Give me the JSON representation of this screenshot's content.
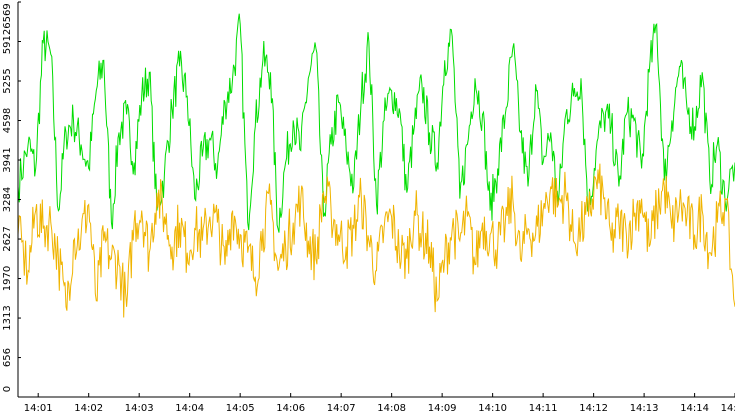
{
  "chart_data": {
    "type": "line",
    "title": "",
    "xlabel": "",
    "ylabel": "",
    "ylim": [
      0,
      6569
    ],
    "xlim_minutes": [
      0.6,
      14.8
    ],
    "y_ticks": [
      {
        "value": 0,
        "label": "0"
      },
      {
        "value": 656,
        "label": "656"
      },
      {
        "value": 1313,
        "label": "1313"
      },
      {
        "value": 1970,
        "label": "1970"
      },
      {
        "value": 2627,
        "label": "2627"
      },
      {
        "value": 3284,
        "label": "3284"
      },
      {
        "value": 3941,
        "label": "3941"
      },
      {
        "value": 4598,
        "label": "4598"
      },
      {
        "value": 5255,
        "label": "5255"
      },
      {
        "value": 5912,
        "label": "5912"
      },
      {
        "value": 6569,
        "label": "6569"
      }
    ],
    "x_ticks": [
      {
        "minute": 1,
        "label": "14:01"
      },
      {
        "minute": 2,
        "label": "14:02"
      },
      {
        "minute": 3,
        "label": "14:03"
      },
      {
        "minute": 4,
        "label": "14:04"
      },
      {
        "minute": 5,
        "label": "14:05"
      },
      {
        "minute": 6,
        "label": "14:06"
      },
      {
        "minute": 7,
        "label": "14:07"
      },
      {
        "minute": 8,
        "label": "14:08"
      },
      {
        "minute": 9,
        "label": "14:09"
      },
      {
        "minute": 10,
        "label": "14:10"
      },
      {
        "minute": 11,
        "label": "14:11"
      },
      {
        "minute": 12,
        "label": "14:12"
      },
      {
        "minute": 13,
        "label": "14:13"
      },
      {
        "minute": 14,
        "label": "14:14"
      },
      {
        "minute": 14.8,
        "label": "14:14"
      }
    ],
    "grid": false,
    "legend": "none",
    "series": [
      {
        "color": "#00dd00",
        "x_minutes": [
          0.6,
          0.8,
          0.95,
          1.1,
          1.25,
          1.4,
          1.55,
          1.7,
          1.85,
          2.0,
          2.15,
          2.3,
          2.45,
          2.6,
          2.75,
          2.9,
          3.05,
          3.2,
          3.35,
          3.5,
          3.65,
          3.8,
          3.95,
          4.1,
          4.25,
          4.4,
          4.55,
          4.7,
          4.85,
          5.0,
          5.15,
          5.3,
          5.45,
          5.6,
          5.75,
          5.9,
          6.05,
          6.2,
          6.35,
          6.5,
          6.65,
          6.8,
          6.95,
          7.1,
          7.25,
          7.4,
          7.55,
          7.7,
          7.85,
          8.0,
          8.15,
          8.3,
          8.45,
          8.6,
          8.75,
          8.9,
          9.05,
          9.2,
          9.35,
          9.5,
          9.65,
          9.8,
          9.95,
          10.1,
          10.25,
          10.4,
          10.55,
          10.7,
          10.85,
          11.0,
          11.15,
          11.3,
          11.45,
          11.6,
          11.75,
          11.9,
          12.05,
          12.2,
          12.35,
          12.5,
          12.65,
          12.8,
          12.95,
          13.1,
          13.25,
          13.4,
          13.55,
          13.7,
          13.85,
          14.0,
          14.15,
          14.3,
          14.45,
          14.6,
          14.8
        ],
        "values": [
          3500,
          4200,
          3800,
          5900,
          5700,
          3100,
          4400,
          4600,
          4200,
          3800,
          5100,
          5600,
          2900,
          4400,
          4700,
          3900,
          5000,
          5400,
          3100,
          3700,
          4800,
          5500,
          5000,
          3300,
          4000,
          4300,
          3800,
          4900,
          5300,
          6200,
          2900,
          4500,
          5600,
          5400,
          2800,
          3900,
          4600,
          4100,
          5300,
          5800,
          3000,
          4200,
          4900,
          4100,
          3500,
          5000,
          5900,
          3200,
          4600,
          5100,
          4800,
          3400,
          4500,
          5200,
          4400,
          3900,
          5600,
          6000,
          3300,
          4200,
          5300,
          4700,
          3100,
          3800,
          4700,
          5800,
          4400,
          3500,
          5200,
          3900,
          4400,
          3200,
          4700,
          5000,
          5300,
          3100,
          4100,
          4700,
          4500,
          3500,
          4700,
          4600,
          3800,
          5400,
          6200,
          3600,
          4600,
          5500,
          4800,
          4500,
          5400,
          3600,
          4200,
          3300,
          3900
        ]
      },
      {
        "color": "#f0b400",
        "x_minutes": [
          0.6,
          0.8,
          0.95,
          1.1,
          1.25,
          1.4,
          1.55,
          1.7,
          1.85,
          2.0,
          2.15,
          2.3,
          2.45,
          2.6,
          2.75,
          2.9,
          3.05,
          3.2,
          3.35,
          3.5,
          3.65,
          3.8,
          3.95,
          4.1,
          4.25,
          4.4,
          4.55,
          4.7,
          4.85,
          5.0,
          5.15,
          5.3,
          5.45,
          5.6,
          5.75,
          5.9,
          6.05,
          6.2,
          6.35,
          6.5,
          6.65,
          6.8,
          6.95,
          7.1,
          7.25,
          7.4,
          7.55,
          7.7,
          7.85,
          8.0,
          8.15,
          8.3,
          8.45,
          8.6,
          8.75,
          8.9,
          9.05,
          9.2,
          9.35,
          9.5,
          9.65,
          9.8,
          9.95,
          10.1,
          10.25,
          10.4,
          10.55,
          10.7,
          10.85,
          11.0,
          11.15,
          11.3,
          11.45,
          11.6,
          11.75,
          11.9,
          12.05,
          12.2,
          12.35,
          12.5,
          12.65,
          12.8,
          12.95,
          13.1,
          13.25,
          13.4,
          13.55,
          13.7,
          13.85,
          14.0,
          14.15,
          14.3,
          14.45,
          14.6,
          14.8
        ],
        "values": [
          2700,
          2100,
          3100,
          2800,
          2900,
          2300,
          1500,
          2600,
          2700,
          3200,
          1600,
          2600,
          2300,
          2200,
          1500,
          2900,
          3100,
          2400,
          3400,
          3000,
          2500,
          2900,
          2400,
          2800,
          2600,
          3000,
          2900,
          2200,
          3100,
          2700,
          2400,
          2000,
          2800,
          3200,
          2100,
          2500,
          2900,
          3300,
          2600,
          2300,
          3400,
          3100,
          2700,
          2500,
          2800,
          3300,
          2600,
          2100,
          2800,
          3000,
          2400,
          2300,
          3100,
          2700,
          2500,
          1600,
          2300,
          2800,
          2600,
          3000,
          2200,
          2900,
          2700,
          2500,
          2900,
          3300,
          2300,
          2800,
          2700,
          3100,
          3500,
          3200,
          3400,
          2600,
          2800,
          3000,
          3600,
          3300,
          2600,
          2900,
          2700,
          3000,
          3300,
          2500,
          3100,
          3500,
          2800,
          3200,
          3000,
          2700,
          3100,
          2400,
          2900,
          3300,
          1500
        ]
      }
    ]
  }
}
